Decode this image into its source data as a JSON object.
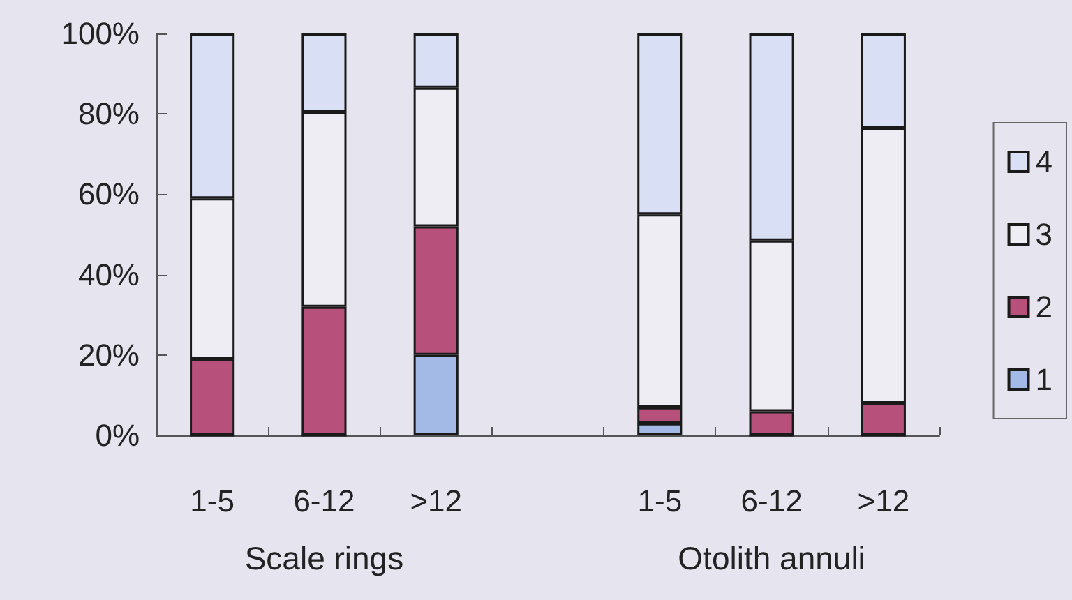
{
  "chart_data": {
    "type": "bar",
    "stacked": true,
    "categories": [
      "1-5",
      "6-12",
      ">12",
      null,
      "1-5",
      "6-12",
      ">12"
    ],
    "series": [
      {
        "name": "1",
        "color": "#a3b9e6",
        "values": [
          0,
          0,
          20,
          null,
          3,
          0,
          0
        ]
      },
      {
        "name": "2",
        "color": "#b8507c",
        "values": [
          19,
          32,
          32,
          null,
          4,
          6,
          8
        ]
      },
      {
        "name": "3",
        "color": "#efedf4",
        "values": [
          40,
          48.5,
          34.5,
          null,
          48,
          42.5,
          68.5
        ]
      },
      {
        "name": "4",
        "color": "#d9dff4",
        "values": [
          41,
          19.5,
          13.5,
          null,
          45,
          51.5,
          23.5
        ]
      }
    ],
    "ylim": [
      0,
      100
    ],
    "yticks": [
      {
        "value": 0,
        "label": "0%"
      },
      {
        "value": 20,
        "label": "20%"
      },
      {
        "value": 40,
        "label": "40%"
      },
      {
        "value": 60,
        "label": "60%"
      },
      {
        "value": 80,
        "label": "80%"
      },
      {
        "value": 100,
        "label": "100%"
      }
    ],
    "annotations": [
      "Scale rings",
      "Otolith annuli"
    ],
    "grid": false,
    "legend": "right"
  }
}
